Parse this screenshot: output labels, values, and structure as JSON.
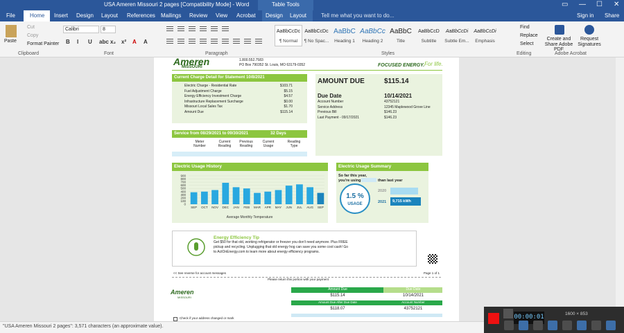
{
  "title_bar": {
    "document_title": "USA Ameren Missouri 2 pages [Compatibility Mode] - Word",
    "context_tab": "Table Tools",
    "sign_in": "Sign in",
    "share": "Share"
  },
  "tabs": [
    "File",
    "Home",
    "Insert",
    "Design",
    "Layout",
    "References",
    "Mailings",
    "Review",
    "View",
    "Acrobat",
    "Design",
    "Layout"
  ],
  "tell_me": "Tell me what you want to do...",
  "ribbon": {
    "clipboard": {
      "paste": "Paste",
      "cut": "Cut",
      "copy": "Copy",
      "format_painter": "Format Painter",
      "label": "Clipboard"
    },
    "font": {
      "name": "Calibri",
      "size": "8",
      "label": "Font"
    },
    "paragraph": {
      "label": "Paragraph"
    },
    "styles": {
      "items": [
        {
          "preview": "AaBbCcDc",
          "name": "¶ Normal"
        },
        {
          "preview": "AaBbCcDc",
          "name": "¶ No Spac..."
        },
        {
          "preview": "AaBbC",
          "name": "Heading 1"
        },
        {
          "preview": "AaBbCc",
          "name": "Heading 2"
        },
        {
          "preview": "AaBbC",
          "name": "Title"
        },
        {
          "preview": "AaBbCcD",
          "name": "Subtitle"
        },
        {
          "preview": "AaBbCcDi",
          "name": "Subtle Em..."
        },
        {
          "preview": "AaBbCcDi",
          "name": "Emphasis"
        }
      ],
      "label": "Styles"
    },
    "editing": {
      "find": "Find",
      "replace": "Replace",
      "select": "Select",
      "label": "Editing"
    },
    "acrobat": {
      "create": "Create and Share Adobe PDF",
      "request": "Request Signatures",
      "label": "Adobe Acrobat"
    }
  },
  "document": {
    "header": {
      "brand": "Ameren",
      "region": "MISSOURI",
      "phone": "1.800.552.7583",
      "address": "PO Box 790352 St. Louis, MO 63179-0352",
      "slogan": "FOCUSED ENERGY.",
      "slogan_tail": "For life."
    },
    "charges": {
      "title": "Current Charge Detail for Statement 10/8/2021",
      "rows": [
        [
          "Electric Charge - Residential Rate",
          "$103.71"
        ],
        [
          "Fuel Adjustment Charge",
          "$5.15"
        ],
        [
          "Energy Efficiency Investment Charge",
          "$4.57"
        ],
        [
          "Infrastructure Replacement Surcharge",
          "$0.00"
        ],
        [
          "Missouri Local Sales Tax",
          "$1.70"
        ],
        [
          "Amount Due",
          "$115.14"
        ]
      ]
    },
    "summary": {
      "amount_due_label": "AMOUNT DUE",
      "amount_due": "$115.14",
      "due_date_label": "Due Date",
      "due_date": "10/14/2021",
      "rows": [
        [
          "Account Number",
          "43752121"
        ],
        [
          "Service Address",
          "12345 Maplewood Grove Line"
        ],
        [
          "Previous Bill",
          "$146.23"
        ],
        [
          "Last Payment - 09/17/2021",
          "$146.23"
        ]
      ]
    },
    "service": {
      "period": "Service from 08/29/2021 to 09/30/2021",
      "days": "32 Days",
      "columns": [
        "Meter Number",
        "Current Reading",
        "Previous Reading",
        "Current Usage",
        "Reading Type"
      ]
    },
    "usage_history": {
      "title": "Electric Usage History",
      "categories": [
        "SEP",
        "OCT",
        "NOV",
        "DEC",
        "JAN",
        "FEB",
        "MAR",
        "APR",
        "MAY",
        "JUN",
        "JUL",
        "AUG",
        "SEP"
      ],
      "values": [
        380,
        400,
        450,
        680,
        540,
        500,
        360,
        400,
        450,
        590,
        630,
        540,
        360
      ],
      "ylim": [
        0,
        900
      ],
      "yticks": [
        0,
        100,
        200,
        300,
        400,
        500,
        600,
        700,
        800,
        900
      ],
      "color": "#29a8e0",
      "last_color": "#1b84bd",
      "x_label": "Average Monthly Temperature"
    },
    "usage_summary": {
      "title": "Electric Usage Summary",
      "line1": "So far this year,",
      "line2": "you're using",
      "line3": "than last year",
      "percent": "1.5 %",
      "usage": "USAGE",
      "year1": "2020",
      "year2": "2021",
      "kwh": "9,715 kWh"
    },
    "tip": {
      "title": "Energy Efficiency Tip",
      "lines": [
        "Get $50 for that old, working refrigerator or freezer you don't need anymore. Plus FREE",
        "pickup and recycling. Unplugging that old energy hog can save you some cool cash! Go",
        "to ActOnEnergy.com to learn more about energy efficiency programs."
      ]
    },
    "footer": {
      "see_reverse": "<< See reverse for account messages",
      "page": "Page 1 of 1",
      "return_note": "Please return this portion with your payment"
    },
    "stub": {
      "brand": "Ameren",
      "region": "MISSOURI",
      "amount_due_label": "Amount Due",
      "due_date_label": "Due Date",
      "amount_due": "$115.14",
      "due_date": "10/14/2021",
      "late_label": "Amount Due After Due Date",
      "account_label": "Account Number",
      "late_amount": "$118.07",
      "account": "43752121",
      "address_check": "Check if your address changed or mark"
    }
  },
  "status_bar": "\"USA Ameren Missouri 2 pages\": 3,571 characters (an approximate value).",
  "recorder": {
    "time": "00:00:01",
    "size": "1600 × 853"
  }
}
